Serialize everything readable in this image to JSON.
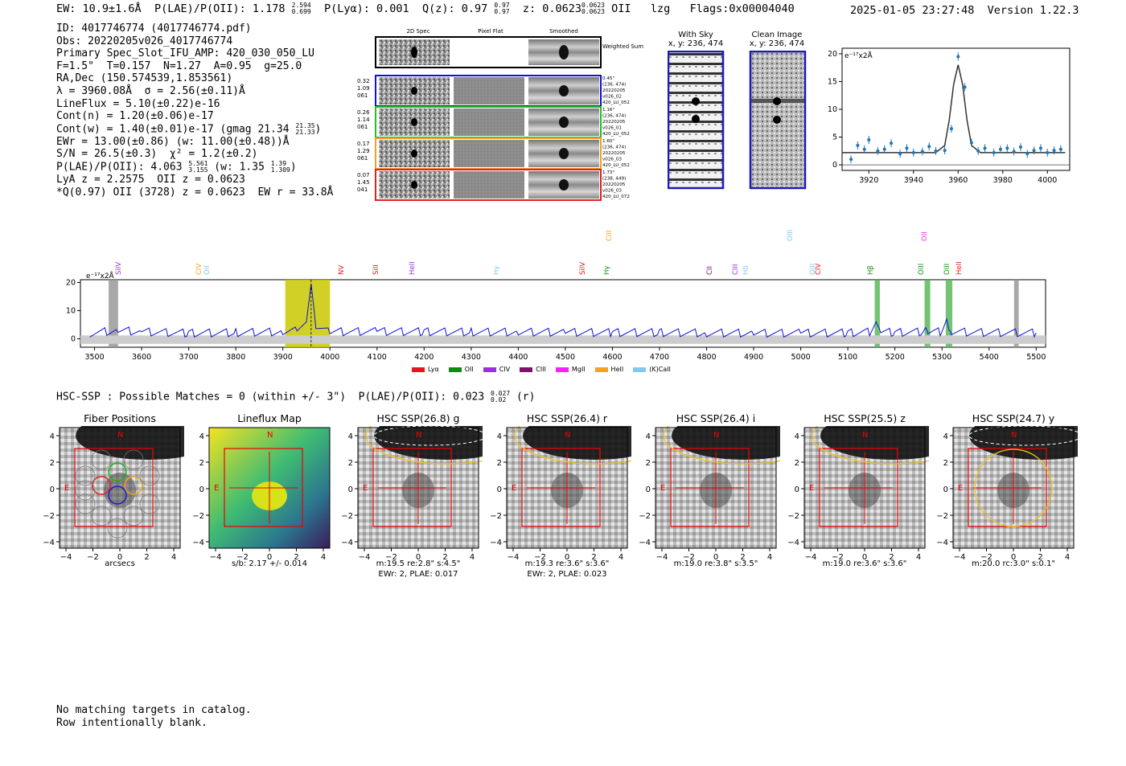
{
  "header": {
    "ew": "EW: 10.9±1.6Å",
    "plae": "P(LAE)/P(OII): 1.178",
    "plae_hi": "2.594",
    "plae_lo": "0.699",
    "plya": "P(Lyα): 0.001",
    "qz": "Q(z): 0.97",
    "qz_hi": "0.97",
    "qz_lo": "0.97",
    "z": "z: 0.0623",
    "z_hi": "0.0623",
    "z_lo": "0.0623",
    "z_line": "OII",
    "lzg": "lzg",
    "flags": "Flags:0x00004040",
    "timestamp": "2025-01-05 23:27:48  Version 1.22.3"
  },
  "info": {
    "id": "ID: 4017746774 (4017746774.pdf)",
    "obs": "Obs: 20220205v026_4017746774",
    "primary": "Primary Spec_Slot_IFU_AMP: 420_030_050_LU",
    "params": "F=1.5\"  T=0.157  N=1.27  A=0.95  g=25.0",
    "radec": "RA,Dec (150.574539,1.853561)",
    "lambda": "λ = 3960.08Å  σ = 2.56(±0.11)Å",
    "lineflux": "LineFlux = 5.10(±0.22)e-16",
    "contn": "Cont(n) = 1.20(±0.06)e-17",
    "contw": "Cont(w) = 1.40(±0.01)e-17 (gmag 21.34",
    "contw_hi": "21.35",
    "contw_lo": "21.33",
    "ewr": "EWr = 13.00(±0.86) (w: 11.00(±0.48))Å",
    "sn": "S/N = 26.5(±0.3)  χ² = 1.2(±0.2)",
    "plae2": "P(LAE)/P(OII): 4.063",
    "plae2_hi": "5.561",
    "plae2_lo": "3.155",
    "plae2_w": "(w: 1.35",
    "plae2_w_hi": "1.39",
    "plae2_w_lo": "1.309",
    "lya": "LyA z = 2.2575  OII z = 0.0623",
    "qline": "*Q(0.97) OII (3728) z = 0.0623  EW r = 33.8Å"
  },
  "cutouts": {
    "col_2dspec": "2D Spec",
    "col_pixelflat": "Pixel Flat",
    "col_smoothed": "Smoothed",
    "weighted": "Weighted Sum",
    "rows": [
      {
        "n1": "0.32",
        "n2": "1.09",
        "n3": "061",
        "d1": "0.45\"",
        "d2": "(236, 474)",
        "d3": "20220205",
        "d4": "v026_02",
        "d5": "420_LU_052",
        "color": "#1010d0"
      },
      {
        "n1": "0.26",
        "n2": "1.14",
        "n3": "061",
        "d1": "1.16\"",
        "d2": "(236, 474)",
        "d3": "20220205",
        "d4": "v026_01",
        "d5": "420_LU_052",
        "color": "#20c020"
      },
      {
        "n1": "0.17",
        "n2": "1.29",
        "n3": "061",
        "d1": "1.60\"",
        "d2": "(236, 474)",
        "d3": "20220205",
        "d4": "v026_03",
        "d5": "420_LU_052",
        "color": "#f0a020"
      },
      {
        "n1": "0.07",
        "n2": "1.45",
        "n3": "041",
        "d1": "1.73\"",
        "d2": "(238, 449)",
        "d3": "20220205",
        "d4": "v026_03",
        "d5": "420_LU_072",
        "color": "#e02020"
      }
    ]
  },
  "sky": {
    "with_sky": "With Sky",
    "with_sky_xy": "x, y: 236, 474",
    "clean": "Clean Image",
    "clean_xy": "x, y: 236, 474"
  },
  "zoom_chart": {
    "ylabel": "e⁻¹⁷x2Å",
    "xticks": [
      "3920",
      "3940",
      "3960",
      "3980",
      "4000"
    ],
    "yticks": [
      "0",
      "5",
      "10",
      "15",
      "20"
    ]
  },
  "spectrum": {
    "ylabel": "e⁻¹⁷x2Å",
    "xticks": [
      "3500",
      "3600",
      "3700",
      "3800",
      "3900",
      "4000",
      "4100",
      "4200",
      "4300",
      "4400",
      "4500",
      "4600",
      "4700",
      "4800",
      "4900",
      "5000",
      "5100",
      "5200",
      "5300",
      "5400",
      "5500"
    ],
    "yticks": [
      "0",
      "10",
      "20"
    ],
    "legend": [
      {
        "label": "Lyα",
        "color": "#e8141c"
      },
      {
        "label": "OII",
        "color": "#128a12"
      },
      {
        "label": "CIV",
        "color": "#9b30e0"
      },
      {
        "label": "CIII",
        "color": "#80106e"
      },
      {
        "label": "MgII",
        "color": "#ff20ff"
      },
      {
        "label": "HeII",
        "color": "#f8a020"
      },
      {
        "label": "(K)CaII",
        "color": "#80c8f0"
      }
    ],
    "line_labels": [
      {
        "t": "SiIV",
        "c": "#9b30e0"
      },
      {
        "t": "CIV",
        "c": "#f8a020"
      },
      {
        "t": "OII",
        "c": "#80c8f0"
      },
      {
        "t": "NV",
        "c": "#e8141c"
      },
      {
        "t": "SiII",
        "c": "#e8141c"
      },
      {
        "t": "HeII",
        "c": "#9b30e0"
      },
      {
        "t": "Hγ",
        "c": "#80c8f0"
      },
      {
        "t": "SiIV",
        "c": "#e8141c"
      },
      {
        "t": "CIII",
        "c": "#f8a020"
      },
      {
        "t": "Hγ",
        "c": "#128a12"
      },
      {
        "t": "CII",
        "c": "#80106e"
      },
      {
        "t": "CIII",
        "c": "#9b30e0"
      },
      {
        "t": "Hδ",
        "c": "#80c8f0"
      },
      {
        "t": "OIII",
        "c": "#80c8f0"
      },
      {
        "t": "OIII",
        "c": "#80c8f0"
      },
      {
        "t": "CIV",
        "c": "#e8141c"
      },
      {
        "t": "Hβ",
        "c": "#128a12"
      },
      {
        "t": "OII",
        "c": "#ff20ff"
      },
      {
        "t": "OIII",
        "c": "#128a12"
      },
      {
        "t": "OIII",
        "c": "#128a12"
      },
      {
        "t": "HeII",
        "c": "#e8141c"
      }
    ]
  },
  "hsc": {
    "title": "HSC-SSP : Possible Matches = 0 (within +/- 3\")  P(LAE)/P(OII): 0.023",
    "title_hi": "0.027",
    "title_lo": "0.02",
    "title_band": "(r)"
  },
  "panels": [
    {
      "title": "Fiber Positions",
      "cap1": "arcsecs",
      "cap2": ""
    },
    {
      "title": "Lineflux Map",
      "cap1": "s/b: 2.17 +/- 0.014",
      "cap2": ""
    },
    {
      "title": "HSC SSP(26.8) g",
      "cap1": "m:19.5  re:2.8\"  s:4.5\"",
      "cap2": "EWr: 2, PLAE: 0.017"
    },
    {
      "title": "HSC SSP(26.4) r",
      "cap1": "m:19.3  re:3.6\"  s:3.6\"",
      "cap2": "EWr: 2, PLAE: 0.023"
    },
    {
      "title": "HSC SSP(26.4) i",
      "cap1": "m:19.0  re:3.8\"  s:3.5\"",
      "cap2": ""
    },
    {
      "title": "HSC SSP(25.5) z",
      "cap1": "m:19.0  re:3.6\"  s:3.6\"",
      "cap2": ""
    },
    {
      "title": "HSC SSP(24.7) y",
      "cap1": "m:20.0  rc:3.0\"  s:0.1\"",
      "cap2": ""
    }
  ],
  "panel_ticks": {
    "x": [
      "−4",
      "−2",
      "0",
      "2",
      "4"
    ],
    "y": [
      "4",
      "2",
      "0",
      "−2",
      "−4"
    ],
    "n": "N",
    "e": "E"
  },
  "footer": {
    "l1": "No matching targets in catalog.",
    "l2": "Row intentionally blank."
  },
  "chart_data": [
    {
      "type": "line",
      "title": "",
      "xlabel": "",
      "ylabel": "e⁻¹⁷x2Å",
      "xlim": [
        3908,
        4010
      ],
      "ylim": [
        -1,
        21
      ],
      "series": [
        {
          "name": "data",
          "x": [
            3912,
            3915,
            3918,
            3920,
            3924,
            3927,
            3930,
            3934,
            3937,
            3940,
            3944,
            3947,
            3950,
            3954,
            3957,
            3960,
            3963,
            3966,
            3969,
            3972,
            3976,
            3979,
            3982,
            3985,
            3988,
            3991,
            3994,
            3997,
            4000,
            4003,
            4006
          ],
          "y": [
            1,
            3.5,
            2.8,
            4.5,
            2.5,
            2.8,
            3.9,
            2.0,
            3.0,
            2.2,
            2.4,
            3.3,
            2.5,
            2.6,
            6.5,
            19.5,
            14,
            4.0,
            2.5,
            3.0,
            2.2,
            2.8,
            3.0,
            2.4,
            3.2,
            2.0,
            2.6,
            3.0,
            2.2,
            2.6,
            2.8
          ]
        },
        {
          "name": "fit",
          "x": [
            3908,
            3950,
            3954,
            3956,
            3958,
            3960,
            3962,
            3964,
            3966,
            3970,
            4008
          ],
          "y": [
            2.2,
            2.2,
            3.5,
            8,
            14.5,
            18,
            14.5,
            8,
            3.5,
            2.2,
            2.2
          ]
        }
      ]
    },
    {
      "type": "line",
      "title": "",
      "xlabel": "",
      "ylabel": "e⁻¹⁷x2Å",
      "xlim": [
        3470,
        5520
      ],
      "ylim": [
        -3,
        21
      ],
      "series": [
        {
          "name": "spectrum",
          "x": [
            3490,
            3550,
            3600,
            3700,
            3800,
            3900,
            3930,
            3950,
            3960,
            3970,
            4000,
            4100,
            4200,
            4300,
            4400,
            4500,
            4600,
            4700,
            4800,
            4900,
            5000,
            5100,
            5150,
            5160,
            5170,
            5200,
            5260,
            5265,
            5270,
            5300,
            5310,
            5315,
            5320,
            5400,
            5500
          ],
          "y": [
            2,
            3,
            2.5,
            2,
            2.2,
            2.5,
            2.8,
            6,
            19.5,
            5,
            2.5,
            2.6,
            2.5,
            2.4,
            2.4,
            2.3,
            2.2,
            2.2,
            2.1,
            2.0,
            2.0,
            2.1,
            2.5,
            6,
            2.5,
            2.2,
            2.5,
            4,
            2.5,
            2.5,
            7,
            3,
            2.5,
            2.2,
            2.1
          ]
        }
      ],
      "highlights": [
        {
          "from": 3905,
          "to": 4000,
          "color": "#c8c800"
        },
        {
          "from": 3530,
          "to": 3550,
          "color": "#999999"
        },
        {
          "from": 5157,
          "to": 5168,
          "color": "#5cb85c"
        },
        {
          "from": 5263,
          "to": 5275,
          "color": "#5cb85c"
        },
        {
          "from": 5308,
          "to": 5322,
          "color": "#5cb85c"
        },
        {
          "from": 5453,
          "to": 5463,
          "color": "#999999"
        }
      ]
    }
  ]
}
